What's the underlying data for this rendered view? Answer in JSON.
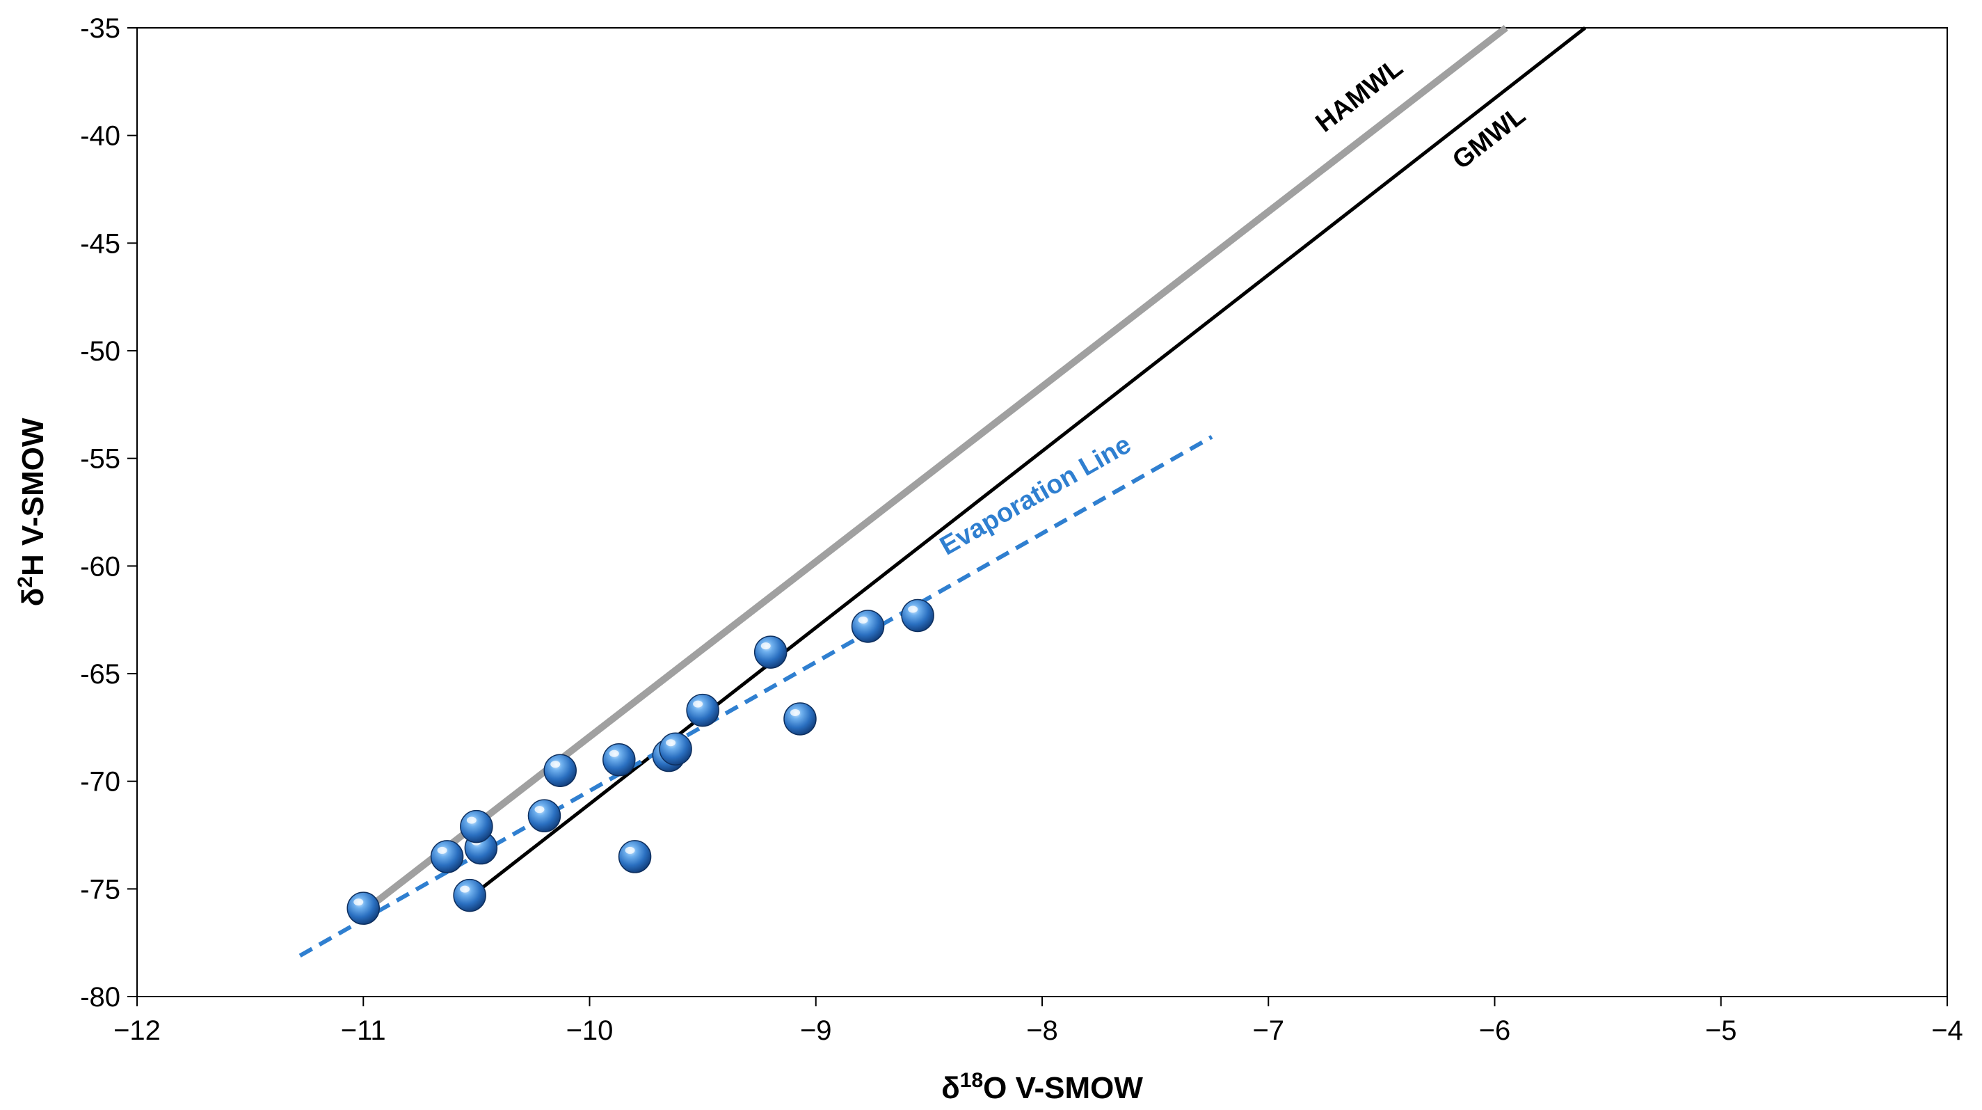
{
  "chart_data": {
    "type": "scatter",
    "title": "",
    "xlabel": "δ18O V-SMOW",
    "xlabel_parts": {
      "delta": "δ",
      "superscript": "18",
      "rest": "O V-SMOW"
    },
    "ylabel": "δ2H V-SMOW",
    "ylabel_parts": {
      "delta": "δ",
      "superscript": "2",
      "rest": "H V-SMOW"
    },
    "xlim": [
      -12,
      -4
    ],
    "ylim": [
      -80,
      -35
    ],
    "x_ticks": [
      -12,
      -11,
      -10,
      -9,
      -8,
      -7,
      -6,
      -5,
      -4
    ],
    "x_tick_labels": [
      "−12",
      "−11",
      "−10",
      "−9",
      "−8",
      "−7",
      "−6",
      "−5",
      "−4"
    ],
    "y_ticks": [
      -80,
      -75,
      -70,
      -65,
      -60,
      -55,
      -50,
      -45,
      -40,
      -35
    ],
    "y_tick_labels": [
      "-80",
      "-75",
      "-70",
      "-65",
      "-60",
      "-55",
      "-50",
      "-45",
      "-40",
      "-35"
    ],
    "grid": false,
    "legend": "none",
    "points": {
      "color": "#2f78c8",
      "x": [
        -11.0,
        -10.53,
        -10.63,
        -10.48,
        -10.5,
        -10.2,
        -10.13,
        -9.8,
        -9.87,
        -9.65,
        -9.62,
        -9.5,
        -9.2,
        -9.07,
        -8.77,
        -8.55
      ],
      "y": [
        -75.9,
        -75.3,
        -73.5,
        -73.1,
        -72.1,
        -71.6,
        -69.5,
        -73.5,
        -69.0,
        -68.8,
        -68.5,
        -66.7,
        -64.0,
        -67.1,
        -62.8,
        -62.3
      ]
    },
    "lines": [
      {
        "name": "HAMWL",
        "color": "#a0a0a0",
        "style": "solid",
        "x": [
          -10.98,
          -5.95
        ],
        "y": [
          -75.9,
          -35.0
        ]
      },
      {
        "name": "GMWL",
        "color": "#000000",
        "style": "solid",
        "x": [
          -10.53,
          -5.6
        ],
        "y": [
          -75.4,
          -35.0
        ]
      },
      {
        "name": "Evaporation Line",
        "color": "#2f7fd0",
        "style": "dashed",
        "x": [
          -11.28,
          -7.25
        ],
        "y": [
          -78.1,
          -54.0
        ]
      }
    ]
  }
}
